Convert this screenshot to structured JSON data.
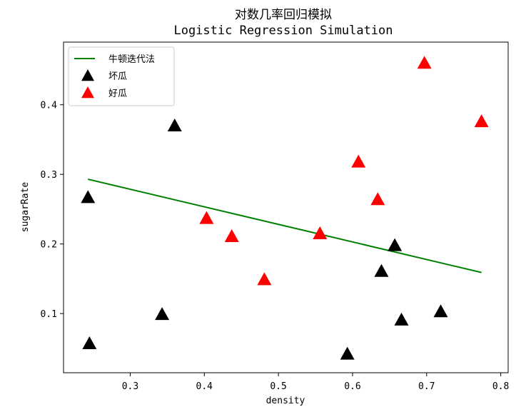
{
  "chart_data": {
    "type": "scatter",
    "title": "对数几率回归模拟",
    "subtitle": "Logistic Regression Simulation",
    "xlabel": "density",
    "ylabel": "sugarRate",
    "xlim": [
      0.21,
      0.81
    ],
    "ylim": [
      0.015,
      0.49
    ],
    "xticks": [
      0.3,
      0.4,
      0.5,
      0.6,
      0.7,
      0.8
    ],
    "xtick_labels": [
      "0.3",
      "0.4",
      "0.5",
      "0.6",
      "0.7",
      "0.8"
    ],
    "yticks": [
      0.1,
      0.2,
      0.3,
      0.4
    ],
    "ytick_labels": [
      "0.1",
      "0.2",
      "0.3",
      "0.4"
    ],
    "grid": false,
    "legend_position": "top-left",
    "line": {
      "name": "牛顿迭代法",
      "color": "#008000",
      "x": [
        0.243,
        0.774
      ],
      "y": [
        0.293,
        0.159
      ]
    },
    "series": [
      {
        "name": "坏瓜",
        "color": "#000000",
        "marker": "triangle",
        "x": [
          0.245,
          0.343,
          0.36,
          0.243,
          0.593,
          0.639,
          0.657,
          0.666,
          0.719
        ],
        "y": [
          0.057,
          0.099,
          0.37,
          0.267,
          0.042,
          0.161,
          0.198,
          0.091,
          0.103
        ]
      },
      {
        "name": "好瓜",
        "color": "#ff0000",
        "marker": "triangle",
        "x": [
          0.697,
          0.774,
          0.634,
          0.608,
          0.556,
          0.403,
          0.481,
          0.437
        ],
        "y": [
          0.46,
          0.376,
          0.264,
          0.318,
          0.215,
          0.237,
          0.149,
          0.211
        ]
      }
    ]
  }
}
